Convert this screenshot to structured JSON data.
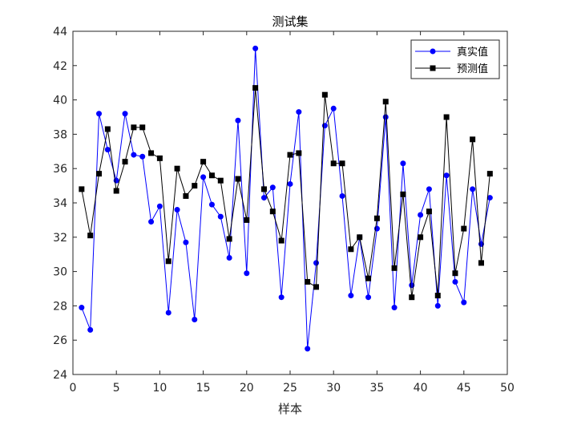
{
  "chart_data": {
    "type": "line",
    "title": "测试集",
    "xlabel": "样本",
    "ylabel": "",
    "xlim": [
      0,
      50
    ],
    "ylim": [
      24,
      44
    ],
    "xticks": [
      0,
      5,
      10,
      15,
      20,
      25,
      30,
      35,
      40,
      45,
      50
    ],
    "yticks": [
      24,
      26,
      28,
      30,
      32,
      34,
      36,
      38,
      40,
      42,
      44
    ],
    "grid": false,
    "legend_position": "top-right",
    "x": [
      1,
      2,
      3,
      4,
      5,
      6,
      7,
      8,
      9,
      10,
      11,
      12,
      13,
      14,
      15,
      16,
      17,
      18,
      19,
      20,
      21,
      22,
      23,
      24,
      25,
      26,
      27,
      28,
      29,
      30,
      31,
      32,
      33,
      34,
      35,
      36,
      37,
      38,
      39,
      40,
      41,
      42,
      43,
      44,
      45,
      46,
      47,
      48
    ],
    "series": [
      {
        "name": "真实值",
        "color": "#0000ff",
        "marker": "circle",
        "values": [
          27.9,
          26.6,
          39.2,
          37.1,
          35.3,
          39.2,
          36.8,
          36.7,
          32.9,
          33.8,
          27.6,
          33.6,
          31.7,
          27.2,
          35.5,
          33.9,
          33.2,
          30.8,
          38.8,
          29.9,
          43.0,
          34.3,
          34.9,
          28.5,
          35.1,
          39.3,
          25.5,
          30.5,
          38.5,
          39.5,
          34.4,
          28.6,
          32.0,
          28.5,
          32.5,
          39.0,
          27.9,
          36.3,
          29.2,
          33.3,
          34.8,
          28.0,
          35.6,
          29.4,
          28.2,
          34.8,
          31.6,
          34.3
        ]
      },
      {
        "name": "预测值",
        "color": "#000000",
        "marker": "square",
        "values": [
          34.8,
          32.1,
          35.7,
          38.3,
          34.7,
          36.4,
          38.4,
          38.4,
          36.9,
          36.6,
          30.6,
          36.0,
          34.4,
          35.0,
          36.4,
          35.6,
          35.3,
          31.9,
          35.4,
          33.0,
          40.7,
          34.8,
          33.5,
          31.8,
          36.8,
          36.9,
          29.4,
          29.1,
          40.3,
          36.3,
          36.3,
          31.3,
          32.0,
          29.6,
          33.1,
          39.9,
          30.2,
          34.5,
          28.5,
          32.0,
          33.5,
          28.6,
          39.0,
          29.9,
          32.5,
          37.7,
          30.5,
          35.7
        ]
      }
    ]
  }
}
